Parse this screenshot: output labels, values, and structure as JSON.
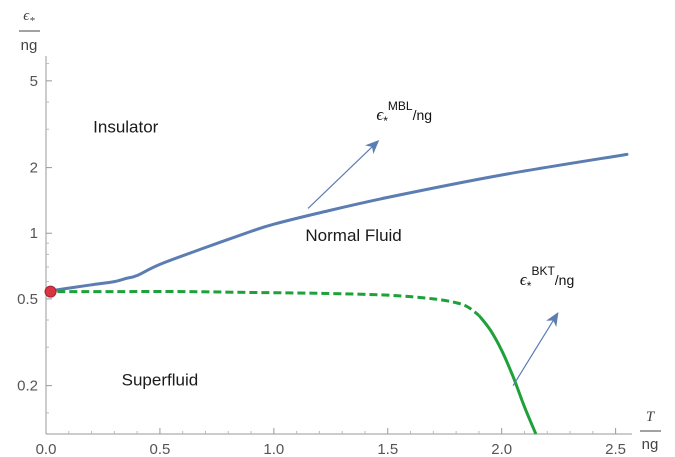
{
  "chart_data": {
    "type": "line",
    "title": "",
    "xlabel": {
      "numerator": "T",
      "denominator": "ng"
    },
    "ylabel": {
      "numerator": "ϵ*",
      "denominator": "ng"
    },
    "x_scale": "linear",
    "y_scale": "log",
    "xlim": [
      0,
      2.55
    ],
    "ylim": [
      0.12,
      6.5
    ],
    "x_ticks": [
      {
        "value": 0,
        "label": "0.0"
      },
      {
        "value": 0.5,
        "label": "0.5"
      },
      {
        "value": 1.0,
        "label": "1.0"
      },
      {
        "value": 1.5,
        "label": "1.5"
      },
      {
        "value": 2.0,
        "label": "2.0"
      },
      {
        "value": 2.5,
        "label": "2.5"
      }
    ],
    "y_ticks": [
      {
        "value": 0.2,
        "label": "0.2"
      },
      {
        "value": 0.5,
        "label": "0.5"
      },
      {
        "value": 1,
        "label": "1"
      },
      {
        "value": 2,
        "label": "2"
      },
      {
        "value": 5,
        "label": "5"
      }
    ],
    "grid": false,
    "series": [
      {
        "key": "mbl",
        "color": "#5b7db1",
        "style": "solid",
        "x": [
          0.0,
          0.1,
          0.2,
          0.3,
          0.35,
          0.4,
          0.5,
          0.7,
          0.9,
          1.0,
          1.2,
          1.5,
          2.0,
          2.55
        ],
        "y": [
          0.54,
          0.56,
          0.58,
          0.6,
          0.62,
          0.64,
          0.72,
          0.86,
          1.02,
          1.1,
          1.24,
          1.46,
          1.85,
          2.3
        ]
      },
      {
        "key": "bkt",
        "color": "#1fa139",
        "x": [
          0.05,
          0.3,
          0.6,
          0.9,
          1.2,
          1.5,
          1.7,
          1.8,
          1.85,
          1.9,
          1.95,
          2.0,
          2.05,
          2.1,
          2.15
        ],
        "y": [
          0.54,
          0.54,
          0.54,
          0.535,
          0.53,
          0.52,
          0.5,
          0.48,
          0.46,
          0.42,
          0.36,
          0.29,
          0.22,
          0.16,
          0.12
        ],
        "dashed_until_x": 1.9
      }
    ],
    "point": {
      "x": 0.02,
      "y": 0.54,
      "color": "#d9343f"
    },
    "regions": [
      {
        "text": "Insulator",
        "x": 0.35,
        "y": 2.9
      },
      {
        "text": "Normal Fluid",
        "x": 1.35,
        "y": 0.92
      },
      {
        "text": "Superfluid",
        "x": 0.5,
        "y": 0.2
      }
    ],
    "annotations": [
      {
        "key": "mbl",
        "symbol": "ϵ",
        "subscript": "*",
        "superscript": "MBL",
        "suffix": "/ng",
        "from": [
          1.15,
          1.3
        ],
        "to": [
          1.45,
          2.6
        ],
        "label_at": [
          1.45,
          3.3
        ]
      },
      {
        "key": "bkt",
        "symbol": "ϵ",
        "subscript": "*",
        "superscript": "BKT",
        "suffix": "/ng",
        "from": [
          2.05,
          0.2
        ],
        "to": [
          2.24,
          0.42
        ],
        "label_at": [
          2.08,
          0.58
        ]
      }
    ],
    "arrow_color": "#5b7db1"
  }
}
